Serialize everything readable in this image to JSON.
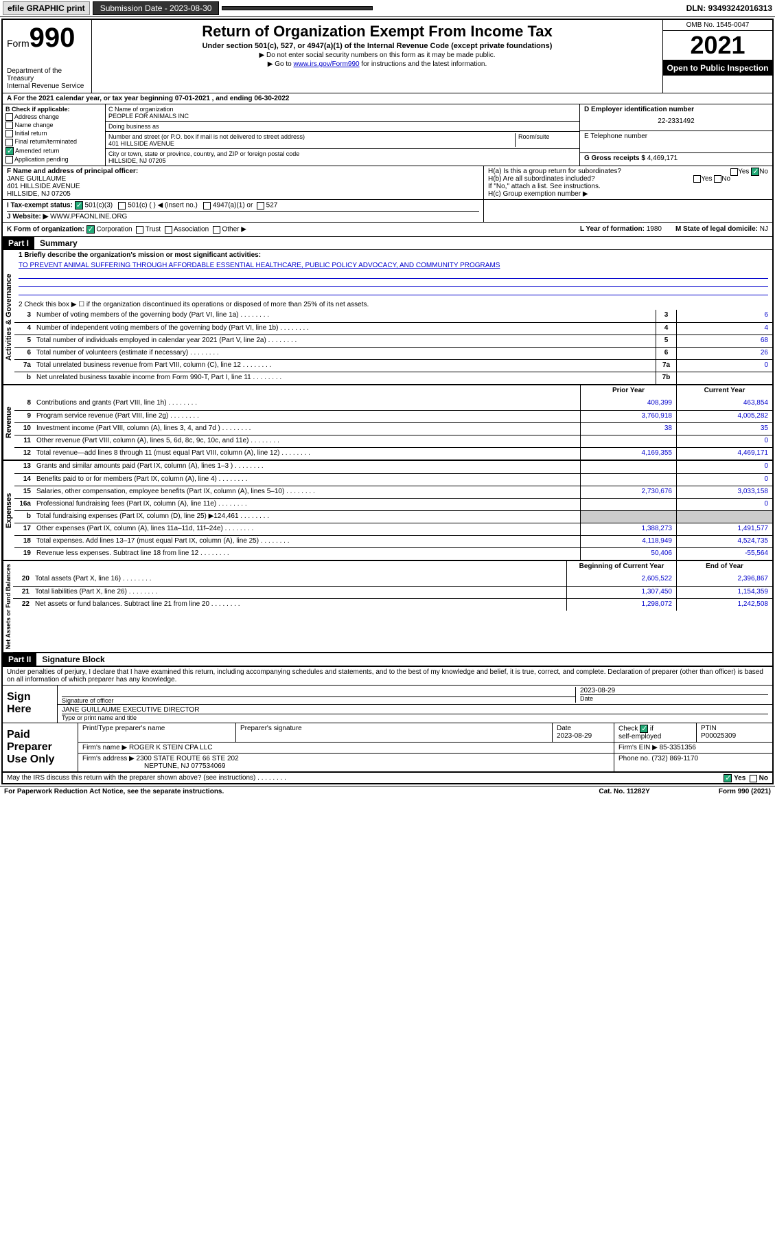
{
  "topbar": {
    "efile": "efile GRAPHIC print",
    "submission_label": "Submission Date - 2023-08-30",
    "dln_label": "DLN: 93493242016313"
  },
  "header": {
    "form_label": "Form",
    "form_num": "990",
    "dept": "Department of the Treasury",
    "irs": "Internal Revenue Service",
    "title": "Return of Organization Exempt From Income Tax",
    "subtitle": "Under section 501(c), 527, or 4947(a)(1) of the Internal Revenue Code (except private foundations)",
    "note1": "▶ Do not enter social security numbers on this form as it may be made public.",
    "note2_pre": "▶ Go to ",
    "note2_link": "www.irs.gov/Form990",
    "note2_post": " for instructions and the latest information.",
    "omb": "OMB No. 1545-0047",
    "year": "2021",
    "open": "Open to Public Inspection"
  },
  "row_a": "A For the 2021 calendar year, or tax year beginning 07-01-2021   , and ending 06-30-2022",
  "section_b": {
    "label": "B Check if applicable:",
    "items": [
      "Address change",
      "Name change",
      "Initial return",
      "Final return/terminated",
      "Amended return",
      "Application pending"
    ],
    "checked_idx": 4
  },
  "section_c": {
    "name_label": "C Name of organization",
    "name": "PEOPLE FOR ANIMALS INC",
    "dba_label": "Doing business as",
    "dba": "",
    "street_label": "Number and street (or P.O. box if mail is not delivered to street address)",
    "room_label": "Room/suite",
    "street": "401 HILLSIDE AVENUE",
    "city_label": "City or town, state or province, country, and ZIP or foreign postal code",
    "city": "HILLSIDE, NJ  07205"
  },
  "section_d": {
    "d_label": "D Employer identification number",
    "d_val": "22-2331492",
    "e_label": "E Telephone number",
    "e_val": "",
    "g_label": "G Gross receipts $ ",
    "g_val": "4,469,171"
  },
  "section_f": {
    "label": "F Name and address of principal officer:",
    "name": "JANE GUILLAUME",
    "street": "401 HILLSIDE AVENUE",
    "city": "HILLSIDE, NJ  07205"
  },
  "section_h": {
    "ha": "H(a)  Is this a group return for subordinates?",
    "ha_yes": "Yes",
    "ha_no": "No",
    "hb": "H(b)  Are all subordinates included?",
    "hb_note": "If \"No,\" attach a list. See instructions.",
    "hc": "H(c)  Group exemption number ▶"
  },
  "section_i": {
    "label": "I    Tax-exempt status:",
    "opt1": "501(c)(3)",
    "opt2": "501(c) (  ) ◀ (insert no.)",
    "opt3": "4947(a)(1) or",
    "opt4": "527"
  },
  "section_j": {
    "label": "J   Website: ▶",
    "val": "WWW.PFAONLINE.ORG"
  },
  "section_k": {
    "label": "K Form of organization:",
    "opts": [
      "Corporation",
      "Trust",
      "Association",
      "Other ▶"
    ],
    "l_label": "L Year of formation: ",
    "l_val": "1980",
    "m_label": "M State of legal domicile: ",
    "m_val": "NJ"
  },
  "part1": {
    "hdr": "Part I",
    "title": "Summary",
    "line1_label": "1   Briefly describe the organization's mission or most significant activities:",
    "line1_val": "TO PREVENT ANIMAL SUFFERING THROUGH AFFORDABLE ESSENTIAL HEALTHCARE, PUBLIC POLICY ADVOCACY, AND COMMUNITY PROGRAMS",
    "line2": "2   Check this box ▶ ☐  if the organization discontinued its operations or disposed of more than 25% of its net assets.",
    "gov_label": "Activities & Governance",
    "rev_label": "Revenue",
    "exp_label": "Expenses",
    "net_label": "Net Assets or Fund Balances",
    "prior_hdr": "Prior Year",
    "curr_hdr": "Current Year",
    "begin_hdr": "Beginning of Current Year",
    "end_hdr": "End of Year",
    "lines_gov": [
      {
        "n": "3",
        "d": "Number of voting members of the governing body (Part VI, line 1a)",
        "box": "3",
        "v": "6"
      },
      {
        "n": "4",
        "d": "Number of independent voting members of the governing body (Part VI, line 1b)",
        "box": "4",
        "v": "4"
      },
      {
        "n": "5",
        "d": "Total number of individuals employed in calendar year 2021 (Part V, line 2a)",
        "box": "5",
        "v": "68"
      },
      {
        "n": "6",
        "d": "Total number of volunteers (estimate if necessary)",
        "box": "6",
        "v": "26"
      },
      {
        "n": "7a",
        "d": "Total unrelated business revenue from Part VIII, column (C), line 12",
        "box": "7a",
        "v": "0"
      },
      {
        "n": "b",
        "d": "Net unrelated business taxable income from Form 990-T, Part I, line 11",
        "box": "7b",
        "v": ""
      }
    ],
    "lines_rev": [
      {
        "n": "8",
        "d": "Contributions and grants (Part VIII, line 1h)",
        "p": "408,399",
        "c": "463,854"
      },
      {
        "n": "9",
        "d": "Program service revenue (Part VIII, line 2g)",
        "p": "3,760,918",
        "c": "4,005,282"
      },
      {
        "n": "10",
        "d": "Investment income (Part VIII, column (A), lines 3, 4, and 7d )",
        "p": "38",
        "c": "35"
      },
      {
        "n": "11",
        "d": "Other revenue (Part VIII, column (A), lines 5, 6d, 8c, 9c, 10c, and 11e)",
        "p": "",
        "c": "0"
      },
      {
        "n": "12",
        "d": "Total revenue—add lines 8 through 11 (must equal Part VIII, column (A), line 12)",
        "p": "4,169,355",
        "c": "4,469,171"
      }
    ],
    "lines_exp": [
      {
        "n": "13",
        "d": "Grants and similar amounts paid (Part IX, column (A), lines 1–3 )",
        "p": "",
        "c": "0"
      },
      {
        "n": "14",
        "d": "Benefits paid to or for members (Part IX, column (A), line 4)",
        "p": "",
        "c": "0"
      },
      {
        "n": "15",
        "d": "Salaries, other compensation, employee benefits (Part IX, column (A), lines 5–10)",
        "p": "2,730,676",
        "c": "3,033,158"
      },
      {
        "n": "16a",
        "d": "Professional fundraising fees (Part IX, column (A), line 11e)",
        "p": "",
        "c": "0"
      },
      {
        "n": "b",
        "d": "Total fundraising expenses (Part IX, column (D), line 25) ▶124,461",
        "p": "grey",
        "c": "grey"
      },
      {
        "n": "17",
        "d": "Other expenses (Part IX, column (A), lines 11a–11d, 11f–24e)",
        "p": "1,388,273",
        "c": "1,491,577"
      },
      {
        "n": "18",
        "d": "Total expenses. Add lines 13–17 (must equal Part IX, column (A), line 25)",
        "p": "4,118,949",
        "c": "4,524,735"
      },
      {
        "n": "19",
        "d": "Revenue less expenses. Subtract line 18 from line 12",
        "p": "50,406",
        "c": "-55,564"
      }
    ],
    "lines_net": [
      {
        "n": "20",
        "d": "Total assets (Part X, line 16)",
        "p": "2,605,522",
        "c": "2,396,867"
      },
      {
        "n": "21",
        "d": "Total liabilities (Part X, line 26)",
        "p": "1,307,450",
        "c": "1,154,359"
      },
      {
        "n": "22",
        "d": "Net assets or fund balances. Subtract line 21 from line 20",
        "p": "1,298,072",
        "c": "1,242,508"
      }
    ]
  },
  "part2": {
    "hdr": "Part II",
    "title": "Signature Block",
    "decl": "Under penalties of perjury, I declare that I have examined this return, including accompanying schedules and statements, and to the best of my knowledge and belief, it is true, correct, and complete. Declaration of preparer (other than officer) is based on all information of which preparer has any knowledge.",
    "sign_here": "Sign Here",
    "sig_officer": "Signature of officer",
    "sig_date": "2023-08-29",
    "date_label": "Date",
    "officer_name": "JANE GUILLAUME  EXECUTIVE DIRECTOR",
    "type_name": "Type or print name and title",
    "paid_label": "Paid Preparer Use Only",
    "prep_name_label": "Print/Type preparer's name",
    "prep_sig_label": "Preparer's signature",
    "prep_date_label": "Date",
    "prep_date": "2023-08-29",
    "check_self": "Check ☑ if self-employed",
    "ptin_label": "PTIN",
    "ptin": "P00025309",
    "firm_name_label": "Firm's name    ▶",
    "firm_name": "ROGER K STEIN CPA LLC",
    "firm_ein_label": "Firm's EIN ▶",
    "firm_ein": "85-3351356",
    "firm_addr_label": "Firm's address ▶",
    "firm_addr1": "2300 STATE ROUTE 66 STE 202",
    "firm_addr2": "NEPTUNE, NJ  077534069",
    "phone_label": "Phone no. ",
    "phone": "(732) 869-1170",
    "may_irs": "May the IRS discuss this return with the preparer shown above? (see instructions)",
    "yes": "Yes",
    "no": "No"
  },
  "footer": {
    "left": "For Paperwork Reduction Act Notice, see the separate instructions.",
    "mid": "Cat. No. 11282Y",
    "right": "Form 990 (2021)"
  },
  "colors": {
    "link": "#0000cc",
    "check_green": "#22aa77"
  }
}
